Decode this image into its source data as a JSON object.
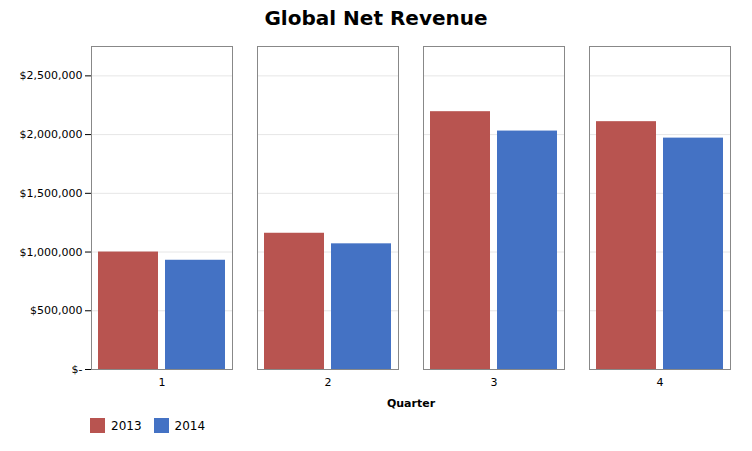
{
  "chart_data": {
    "type": "bar",
    "title": "Global Net Revenue",
    "xlabel": "Quarter",
    "categories": [
      "1",
      "2",
      "3",
      "4"
    ],
    "series": [
      {
        "name": "2013",
        "color": "#B85450",
        "values": [
          1000000,
          1160000,
          2195000,
          2110000
        ]
      },
      {
        "name": "2014",
        "color": "#4472C4",
        "values": [
          930000,
          1070000,
          2030000,
          1970000
        ]
      }
    ],
    "ylim": [
      0,
      2750000
    ],
    "yticks": [
      {
        "value": 0,
        "label": "$-"
      },
      {
        "value": 500000,
        "label": "$500,000"
      },
      {
        "value": 1000000,
        "label": "$1,000,000"
      },
      {
        "value": 1500000,
        "label": "$1,500,000"
      },
      {
        "value": 2000000,
        "label": "$2,000,000"
      },
      {
        "value": 2500000,
        "label": "$2,500,000"
      }
    ],
    "grid": true,
    "legend": "lower left"
  }
}
